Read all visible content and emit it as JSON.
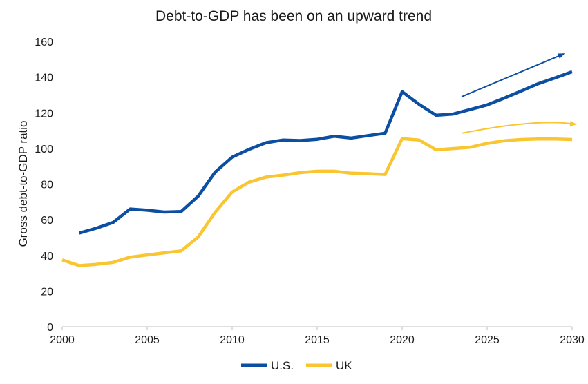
{
  "chart_data": {
    "type": "line",
    "title": "Debt-to-GDP has been on an upward trend",
    "xlabel": "",
    "ylabel": "Gross debt-to-GDP ratio",
    "xlim": [
      2000,
      2030
    ],
    "ylim": [
      0,
      160
    ],
    "xticks": [
      2000,
      2005,
      2010,
      2015,
      2020,
      2025,
      2030
    ],
    "yticks": [
      0,
      20,
      40,
      60,
      80,
      100,
      120,
      140,
      160
    ],
    "grid": false,
    "legend_position": "bottom-center",
    "series": [
      {
        "name": "U.S.",
        "color": "#0B4EA2",
        "points": [
          [
            2001,
            52.5
          ],
          [
            2002,
            55.2
          ],
          [
            2003,
            58.5
          ],
          [
            2004,
            66.0
          ],
          [
            2005,
            65.3
          ],
          [
            2006,
            64.3
          ],
          [
            2007,
            64.6
          ],
          [
            2008,
            73.2
          ],
          [
            2009,
            86.7
          ],
          [
            2010,
            95.1
          ],
          [
            2011,
            99.5
          ],
          [
            2012,
            103.2
          ],
          [
            2013,
            104.7
          ],
          [
            2014,
            104.4
          ],
          [
            2015,
            105.1
          ],
          [
            2016,
            106.8
          ],
          [
            2017,
            105.8
          ],
          [
            2018,
            107.2
          ],
          [
            2019,
            108.5
          ],
          [
            2020,
            131.8
          ],
          [
            2021,
            124.7
          ],
          [
            2022,
            118.6
          ],
          [
            2023,
            119.3
          ],
          [
            2024,
            121.8
          ],
          [
            2025,
            124.4
          ],
          [
            2026,
            128.2
          ],
          [
            2027,
            132.2
          ],
          [
            2028,
            136.3
          ],
          [
            2029,
            139.6
          ],
          [
            2030,
            143.0
          ]
        ]
      },
      {
        "name": "UK",
        "color": "#F9C530",
        "points": [
          [
            2000,
            37.5
          ],
          [
            2001,
            34.3
          ],
          [
            2002,
            35.0
          ],
          [
            2003,
            36.1
          ],
          [
            2004,
            39.0
          ],
          [
            2005,
            40.2
          ],
          [
            2006,
            41.4
          ],
          [
            2007,
            42.5
          ],
          [
            2008,
            50.3
          ],
          [
            2009,
            64.2
          ],
          [
            2010,
            75.6
          ],
          [
            2011,
            81.1
          ],
          [
            2012,
            83.9
          ],
          [
            2013,
            85.0
          ],
          [
            2014,
            86.4
          ],
          [
            2015,
            87.2
          ],
          [
            2016,
            87.2
          ],
          [
            2017,
            86.1
          ],
          [
            2018,
            85.8
          ],
          [
            2019,
            85.4
          ],
          [
            2020,
            105.5
          ],
          [
            2021,
            104.7
          ],
          [
            2022,
            99.2
          ],
          [
            2023,
            99.9
          ],
          [
            2024,
            100.6
          ],
          [
            2025,
            102.8
          ],
          [
            2026,
            104.3
          ],
          [
            2027,
            105.0
          ],
          [
            2028,
            105.3
          ],
          [
            2029,
            105.3
          ],
          [
            2030,
            105.0
          ]
        ]
      }
    ],
    "annotations": [
      {
        "type": "trend-arrow",
        "series": "U.S.",
        "from": [
          2023.5,
          129
        ],
        "to": [
          2029.5,
          153
        ]
      },
      {
        "type": "trend-arrow",
        "series": "UK",
        "from": [
          2023.5,
          108.5
        ],
        "via": [
          2028,
          117
        ],
        "to": [
          2030.2,
          113.5
        ]
      }
    ]
  }
}
